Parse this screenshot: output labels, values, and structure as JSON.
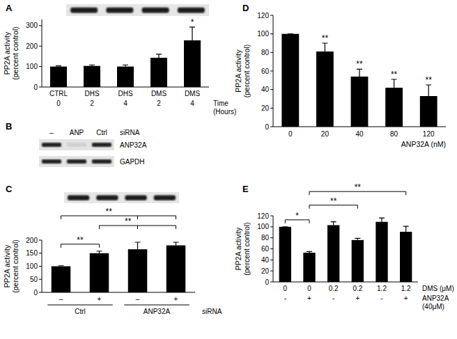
{
  "chart_data": [
    {
      "type": "bar",
      "title": "A",
      "ylabel": [
        "PP2A activity",
        "(percent control)"
      ],
      "categories": [
        "CTRL",
        "DHS",
        "DHS",
        "DMS",
        "DMS"
      ],
      "x_rows": [
        {
          "label": [
            "Time",
            "(Hours)"
          ],
          "values": [
            "0",
            "2",
            "4",
            "2",
            "4"
          ]
        }
      ],
      "values": [
        100,
        103,
        100,
        143,
        228
      ],
      "errors": [
        3,
        5,
        8,
        17,
        65
      ],
      "color": "#000000",
      "ylim": [
        0,
        330
      ],
      "yticks": [
        0,
        100,
        200,
        300
      ],
      "annotations": [
        {
          "index": 4,
          "text": "*"
        }
      ]
    },
    {
      "type": "bar",
      "title": "C",
      "ylabel": [
        "PP2A activity",
        "(percent control)"
      ],
      "categories": [
        "–",
        "+",
        "–",
        "+"
      ],
      "groups": [
        {
          "label": "Ctrl",
          "from": 0,
          "to": 1
        },
        {
          "label": "ANP32A",
          "from": 2,
          "to": 3
        }
      ],
      "group_label": "siRNA",
      "values": [
        100,
        150,
        165,
        180
      ],
      "errors": [
        2,
        8,
        27,
        12
      ],
      "color": "#000000",
      "ylim": [
        0,
        200
      ],
      "yticks": [
        0,
        50,
        100,
        150,
        200
      ],
      "brackets": [
        {
          "from": 0,
          "to": [
            1
          ],
          "text": "**"
        },
        {
          "from": 1,
          "to": [
            2,
            3
          ],
          "text": "**"
        },
        {
          "from": 0,
          "to": [
            2,
            3
          ],
          "text": "**"
        }
      ]
    },
    {
      "type": "bar",
      "title": "D",
      "ylabel": [
        "PP2A activity",
        "(percent control)"
      ],
      "categories": [
        "0",
        "20",
        "40",
        "80",
        "120"
      ],
      "xlabel": "ANP32A (nM)",
      "values": [
        100,
        81,
        54,
        42,
        33
      ],
      "errors": [
        0,
        9,
        8,
        9,
        12
      ],
      "color": "#000000",
      "ylim": [
        0,
        120
      ],
      "yticks": [
        0,
        20,
        40,
        60,
        80,
        100,
        120
      ],
      "annotations": [
        {
          "index": 1,
          "text": "**"
        },
        {
          "index": 2,
          "text": "**"
        },
        {
          "index": 3,
          "text": "**"
        },
        {
          "index": 4,
          "text": "**"
        }
      ]
    },
    {
      "type": "bar",
      "title": "E",
      "ylabel": [
        "PP2A activity",
        "(percent control)"
      ],
      "categories": [
        "0",
        "0",
        "0.2",
        "0.2",
        "1.2",
        "1.2"
      ],
      "xlabel": "DMS (μM)",
      "x_rows": [
        {
          "label": [
            "ANP32A",
            "(40μM)"
          ],
          "values": [
            "-",
            "+",
            "-",
            "+",
            "-",
            "+"
          ]
        }
      ],
      "values": [
        100,
        53,
        103,
        76,
        109,
        91
      ],
      "errors": [
        0,
        2,
        6,
        3,
        7,
        10
      ],
      "color": "#000000",
      "ylim": [
        0,
        120
      ],
      "yticks": [
        0,
        20,
        40,
        60,
        80,
        100,
        120
      ],
      "brackets": [
        {
          "from": 0,
          "to": [
            1
          ],
          "text": "*"
        },
        {
          "from": 1,
          "to": [
            3
          ],
          "text": "**"
        },
        {
          "from": 1,
          "to": [
            5
          ],
          "text": "**"
        }
      ]
    }
  ],
  "blot_b": {
    "title": "B",
    "lanes": [
      "–",
      "ANP",
      "Ctrl"
    ],
    "lane_label": "siRNA",
    "rows": [
      "ANP32A",
      "GAPDH"
    ]
  }
}
